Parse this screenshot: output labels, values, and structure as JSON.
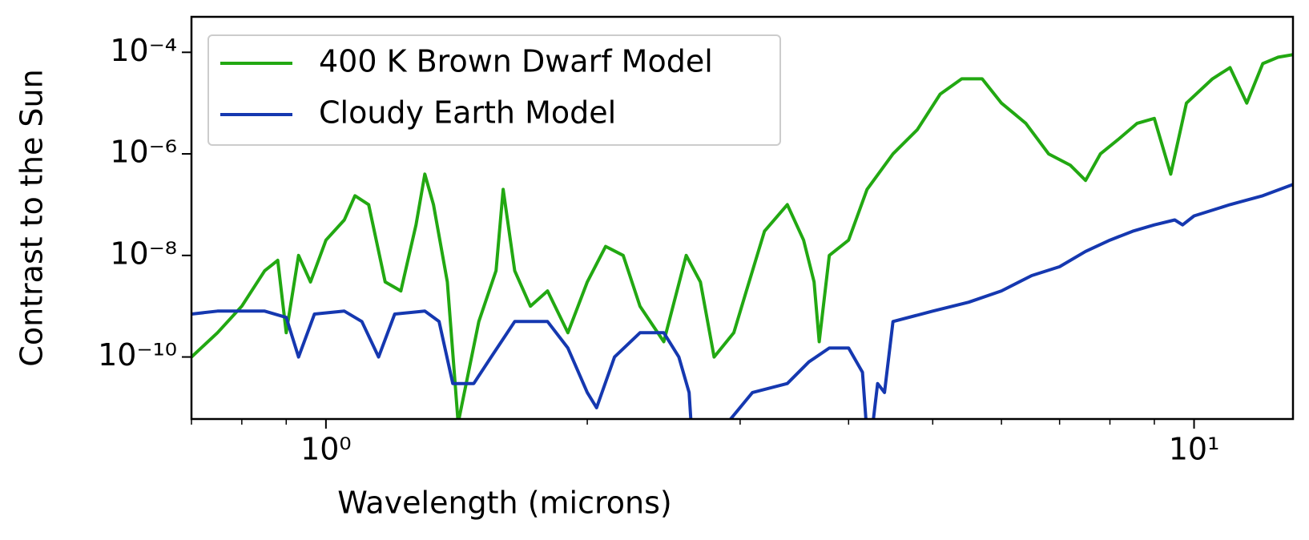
{
  "chart_data": {
    "type": "line",
    "xlabel": "Wavelength (microns)",
    "ylabel": "Contrast to the Sun",
    "xscale": "log",
    "yscale": "log",
    "xlim": [
      0.7,
      13
    ],
    "ylim": [
      6e-12,
      0.0005
    ],
    "xticks": [
      {
        "value": 1,
        "label": "10⁰"
      },
      {
        "value": 10,
        "label": "10¹"
      }
    ],
    "xminorticks": [
      0.7,
      0.8,
      0.9,
      2,
      3,
      4,
      5,
      6,
      7,
      8,
      9
    ],
    "yticks": [
      {
        "value": 0.0001,
        "label": "10⁻⁴"
      },
      {
        "value": 1e-06,
        "label": "10⁻⁶"
      },
      {
        "value": 1e-08,
        "label": "10⁻⁸"
      },
      {
        "value": 1e-10,
        "label": "10⁻¹⁰"
      }
    ],
    "legend": "upper-left",
    "series": [
      {
        "name": "400 K Brown Dwarf Model",
        "color": "#22a812",
        "x": [
          0.7,
          0.75,
          0.8,
          0.85,
          0.88,
          0.9,
          0.93,
          0.96,
          1.0,
          1.05,
          1.08,
          1.12,
          1.17,
          1.22,
          1.27,
          1.3,
          1.33,
          1.38,
          1.42,
          1.5,
          1.57,
          1.6,
          1.65,
          1.72,
          1.8,
          1.9,
          2.0,
          2.1,
          2.2,
          2.3,
          2.45,
          2.6,
          2.7,
          2.8,
          2.95,
          3.05,
          3.2,
          3.4,
          3.55,
          3.65,
          3.7,
          3.8,
          4.0,
          4.2,
          4.5,
          4.8,
          5.1,
          5.4,
          5.7,
          6.0,
          6.4,
          6.8,
          7.2,
          7.5,
          7.8,
          8.2,
          8.6,
          9.0,
          9.4,
          9.8,
          10.5,
          11.0,
          11.5,
          12.0,
          12.5,
          13.0
        ],
        "values": [
          1e-10,
          3e-10,
          1e-09,
          5e-09,
          8e-09,
          3e-10,
          1e-08,
          3e-09,
          2e-08,
          5e-08,
          1.5e-07,
          1e-07,
          3e-09,
          2e-09,
          4e-08,
          4e-07,
          1e-07,
          3e-09,
          5e-12,
          5e-10,
          5e-09,
          2e-07,
          5e-09,
          1e-09,
          2e-09,
          3e-10,
          3e-09,
          1.5e-08,
          1e-08,
          1e-09,
          2e-10,
          1e-08,
          3e-09,
          1e-10,
          3e-10,
          2e-09,
          3e-08,
          1e-07,
          2e-08,
          3e-09,
          2e-10,
          1e-08,
          2e-08,
          2e-07,
          1e-06,
          3e-06,
          1.5e-05,
          3e-05,
          3e-05,
          1e-05,
          4e-06,
          1e-06,
          6e-07,
          3e-07,
          1e-06,
          2e-06,
          4e-06,
          5e-06,
          4e-07,
          1e-05,
          3e-05,
          5e-05,
          1e-05,
          6e-05,
          8e-05,
          9e-05
        ]
      },
      {
        "name": "Cloudy Earth Model",
        "color": "#1538b0",
        "x": [
          0.7,
          0.75,
          0.8,
          0.85,
          0.9,
          0.93,
          0.97,
          1.05,
          1.1,
          1.15,
          1.2,
          1.3,
          1.35,
          1.4,
          1.48,
          1.55,
          1.65,
          1.8,
          1.9,
          2.0,
          2.05,
          2.15,
          2.3,
          2.45,
          2.55,
          2.62,
          2.65,
          2.85,
          2.9,
          3.1,
          3.4,
          3.6,
          3.8,
          4.0,
          4.15,
          4.22,
          4.32,
          4.4,
          4.5,
          5.0,
          5.5,
          6.0,
          6.5,
          7.0,
          7.5,
          8.0,
          8.5,
          9.0,
          9.5,
          9.7,
          10.0,
          11.0,
          12.0,
          13.0
        ],
        "values": [
          7e-10,
          8e-10,
          8e-10,
          8e-10,
          6e-10,
          1e-10,
          7e-10,
          8e-10,
          5e-10,
          1e-10,
          7e-10,
          8e-10,
          5e-10,
          3e-11,
          3e-11,
          1e-10,
          5e-10,
          5e-10,
          1.5e-10,
          2e-11,
          1e-11,
          1e-10,
          3e-10,
          3e-10,
          1e-10,
          2e-11,
          1e-12,
          1e-12,
          5e-12,
          2e-11,
          3e-11,
          8e-11,
          1.5e-10,
          1.5e-10,
          5e-11,
          1e-12,
          3e-11,
          2e-11,
          5e-10,
          8e-10,
          1.2e-09,
          2e-09,
          4e-09,
          6e-09,
          1.2e-08,
          2e-08,
          3e-08,
          4e-08,
          5e-08,
          4e-08,
          6e-08,
          1e-07,
          1.5e-07,
          2.5e-07
        ]
      }
    ]
  }
}
